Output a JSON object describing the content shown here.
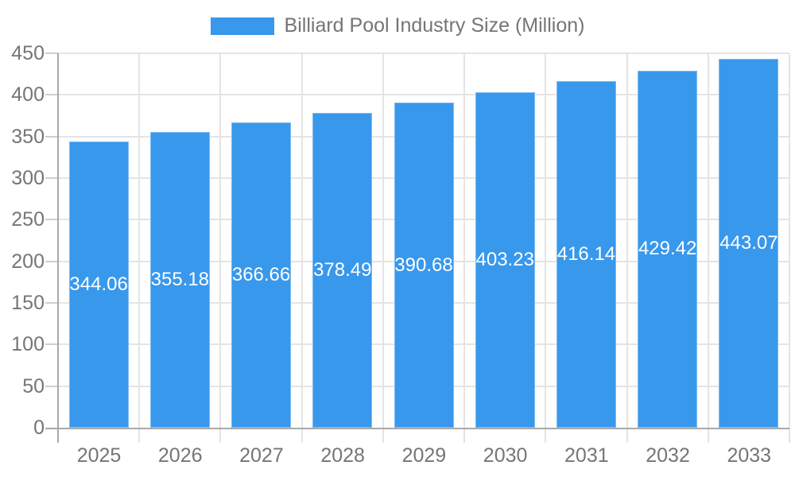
{
  "chart_data": {
    "type": "bar",
    "title": "Billiard Pool Industry Size (Million)",
    "legend": {
      "position": "top-center",
      "entries": [
        {
          "label": "Billiard Pool Industry Size (Million)"
        }
      ]
    },
    "categories": [
      "2025",
      "2026",
      "2027",
      "2028",
      "2029",
      "2030",
      "2031",
      "2032",
      "2033"
    ],
    "series": [
      {
        "name": "Billiard Pool Industry Size (Million)",
        "values": [
          344.06,
          355.18,
          366.66,
          378.49,
          390.68,
          403.23,
          416.14,
          429.42,
          443.07
        ],
        "value_labels": [
          "344.06",
          "355.18",
          "366.66",
          "378.49",
          "390.68",
          "403.23",
          "416.14",
          "429.42",
          "443.07"
        ]
      }
    ],
    "xlabel": "",
    "ylabel": "",
    "ylim": [
      0,
      450
    ],
    "yticks": [
      0,
      50,
      100,
      150,
      200,
      250,
      300,
      350,
      400,
      450
    ],
    "grid": true,
    "value_labels_position": "inside-center",
    "colors": {
      "bar": "#3898ec",
      "bar_edge": "#8cc1f3",
      "grid": "#e4e4e4",
      "axis": "#a9a9a9",
      "tick": "#cfcfcf",
      "text": "#757575",
      "bar_label_text": "#ffffff",
      "background": "#ffffff"
    }
  }
}
